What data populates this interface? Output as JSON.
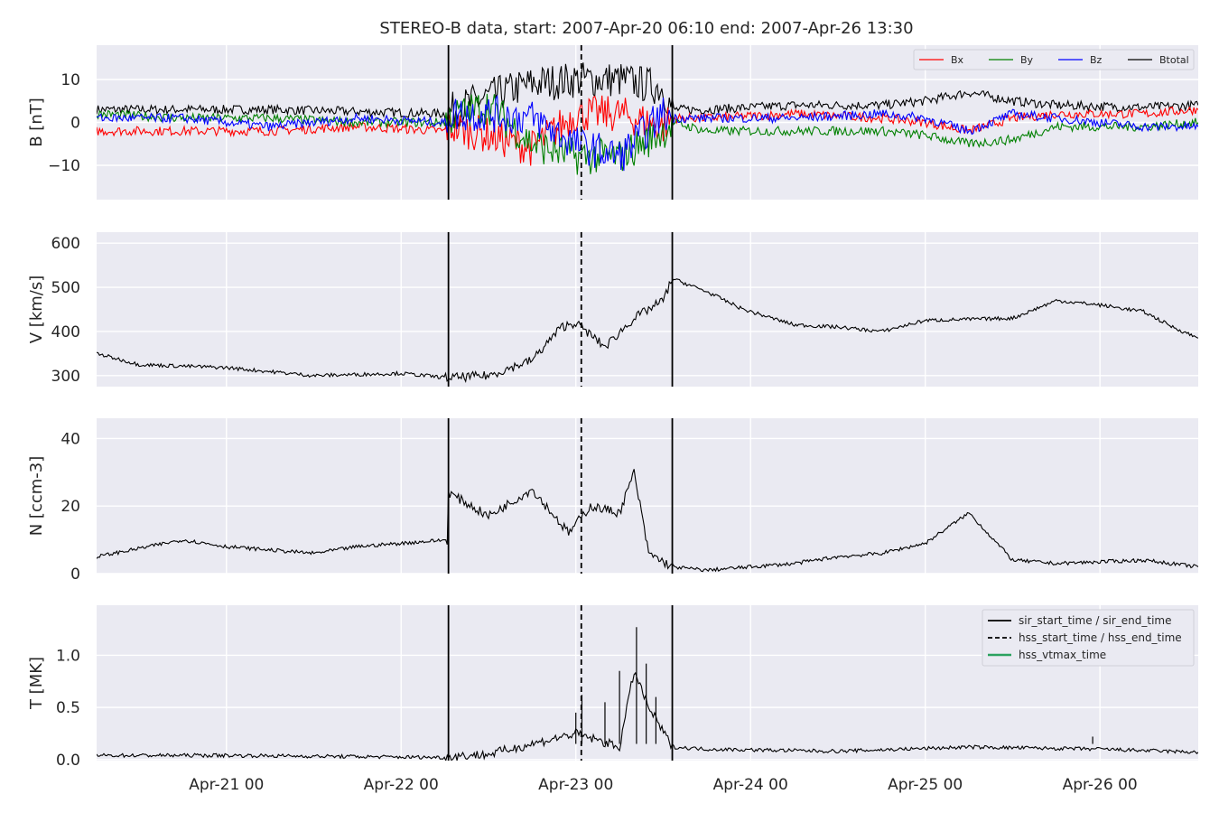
{
  "title": "STEREO-B data, start: 2007-Apr-20 06:10  end: 2007-Apr-26 13:30",
  "colors": {
    "panel_bg": "#eaeaf2",
    "grid": "#ffffff",
    "Bx": "#ff0000",
    "By": "#008000",
    "Bz": "#0000ff",
    "Btotal": "#000000",
    "event_lines": "#000000",
    "vtmax": "#2ca25f"
  },
  "chart_data": {
    "type": "line",
    "x_range": [
      "2007-04-20 06:10",
      "2007-04-26 13:30"
    ],
    "x_ticks": [
      "Apr-21 00",
      "Apr-22 00",
      "Apr-23 00",
      "Apr-24 00",
      "Apr-25 00",
      "Apr-26 00"
    ],
    "vertical_lines": [
      {
        "time": "2007-04-22 06:30",
        "style": "solid"
      },
      {
        "time": "2007-04-23 00:45",
        "style": "dashed"
      },
      {
        "time": "2007-04-23 13:15",
        "style": "solid"
      }
    ],
    "legend_bottom": [
      {
        "label": "sir_start_time / sir_end_time",
        "style": "solid",
        "color": "#000000"
      },
      {
        "label": "hss_start_time / hss_end_time",
        "style": "dashed",
        "color": "#000000"
      },
      {
        "label": "hss_vtmax_time",
        "style": "solid",
        "color": "#2ca25f"
      }
    ],
    "panels": [
      {
        "ylabel": "B [nT]",
        "ylim": [
          -18,
          18
        ],
        "yticks": [
          10,
          0,
          -10
        ],
        "ytick_labels": [
          "10",
          "0",
          "−10"
        ],
        "legend": [
          "Bx",
          "By",
          "Bz",
          "Btotal"
        ],
        "series": [
          {
            "name": "Btotal",
            "color": "#000000",
            "t": [
              "2007-04-20 06:10",
              "2007-04-20 18:00",
              "2007-04-21 06:00",
              "2007-04-21 18:00",
              "2007-04-22 06:00",
              "2007-04-22 06:30",
              "2007-04-22 12:00",
              "2007-04-22 18:00",
              "2007-04-23 00:00",
              "2007-04-23 06:00",
              "2007-04-23 12:00",
              "2007-04-23 13:15",
              "2007-04-23 18:00",
              "2007-04-24 06:00",
              "2007-04-24 18:00",
              "2007-04-25 00:00",
              "2007-04-25 06:00",
              "2007-04-25 12:00",
              "2007-04-25 18:00",
              "2007-04-26 06:00",
              "2007-04-26 13:30"
            ],
            "v": [
              3,
              3,
              3,
              2.5,
              2,
              2.5,
              6,
              9,
              10,
              10,
              8,
              3,
              3,
              4,
              4,
              5,
              7,
              5,
              4,
              3.5,
              4
            ]
          },
          {
            "name": "Bx",
            "color": "#ff0000",
            "t": [
              "2007-04-20 06:10",
              "2007-04-20 18:00",
              "2007-04-21 06:00",
              "2007-04-21 18:00",
              "2007-04-22 06:00",
              "2007-04-22 06:30",
              "2007-04-22 12:00",
              "2007-04-22 18:00",
              "2007-04-23 00:00",
              "2007-04-23 06:00",
              "2007-04-23 12:00",
              "2007-04-23 13:15",
              "2007-04-23 18:00",
              "2007-04-24 06:00",
              "2007-04-24 18:00",
              "2007-04-25 00:00",
              "2007-04-25 06:00",
              "2007-04-25 12:00",
              "2007-04-25 18:00",
              "2007-04-26 06:00",
              "2007-04-26 13:30"
            ],
            "v": [
              -2,
              -2,
              -2,
              -1,
              -2,
              -1,
              -3,
              -6,
              2,
              2,
              -1,
              1,
              1,
              2,
              1,
              0,
              -2,
              1,
              2,
              2,
              3
            ]
          },
          {
            "name": "By",
            "color": "#008000",
            "t": [
              "2007-04-20 06:10",
              "2007-04-20 18:00",
              "2007-04-21 06:00",
              "2007-04-21 18:00",
              "2007-04-22 06:00",
              "2007-04-22 06:30",
              "2007-04-22 12:00",
              "2007-04-22 18:00",
              "2007-04-23 00:00",
              "2007-04-23 06:00",
              "2007-04-23 12:00",
              "2007-04-23 13:15",
              "2007-04-23 18:00",
              "2007-04-24 06:00",
              "2007-04-24 18:00",
              "2007-04-25 00:00",
              "2007-04-25 06:00",
              "2007-04-25 12:00",
              "2007-04-25 18:00",
              "2007-04-26 06:00",
              "2007-04-26 13:30"
            ],
            "v": [
              2,
              1,
              1,
              0,
              0,
              1,
              4,
              -5,
              -8,
              -8,
              -2,
              0,
              -2,
              -2,
              -2,
              -3,
              -5,
              -4,
              -1,
              -1,
              0
            ]
          },
          {
            "name": "Bz",
            "color": "#0000ff",
            "t": [
              "2007-04-20 06:10",
              "2007-04-20 18:00",
              "2007-04-21 06:00",
              "2007-04-21 18:00",
              "2007-04-22 06:00",
              "2007-04-22 06:30",
              "2007-04-22 12:00",
              "2007-04-22 18:00",
              "2007-04-23 00:00",
              "2007-04-23 06:00",
              "2007-04-23 12:00",
              "2007-04-23 13:15",
              "2007-04-23 18:00",
              "2007-04-24 06:00",
              "2007-04-24 18:00",
              "2007-04-25 00:00",
              "2007-04-25 06:00",
              "2007-04-25 12:00",
              "2007-04-25 18:00",
              "2007-04-26 06:00",
              "2007-04-26 13:30"
            ],
            "v": [
              1,
              1,
              -1,
              1,
              0,
              2,
              2,
              1,
              -5,
              -8,
              2,
              1,
              1,
              1,
              2,
              1,
              -2,
              2,
              1,
              -1,
              -1
            ]
          }
        ]
      },
      {
        "ylabel": "V [km/s]",
        "ylim": [
          275,
          625
        ],
        "yticks": [
          600,
          500,
          400,
          300
        ],
        "ytick_labels": [
          "600",
          "500",
          "400",
          "300"
        ],
        "series": [
          {
            "name": "V",
            "color": "#000000",
            "t": [
              "2007-04-20 06:10",
              "2007-04-20 12:00",
              "2007-04-21 00:00",
              "2007-04-21 12:00",
              "2007-04-22 00:00",
              "2007-04-22 06:30",
              "2007-04-22 12:00",
              "2007-04-22 18:00",
              "2007-04-22 22:00",
              "2007-04-23 00:00",
              "2007-04-23 04:00",
              "2007-04-23 08:00",
              "2007-04-23 12:00",
              "2007-04-23 13:15",
              "2007-04-23 18:00",
              "2007-04-23 23:00",
              "2007-04-24 06:00",
              "2007-04-24 12:00",
              "2007-04-24 18:00",
              "2007-04-25 00:00",
              "2007-04-25 12:00",
              "2007-04-25 18:00",
              "2007-04-26 00:00",
              "2007-04-26 06:00",
              "2007-04-26 10:00",
              "2007-04-26 13:30"
            ],
            "v": [
              350,
              325,
              318,
              300,
              305,
              295,
              300,
              335,
              410,
              420,
              365,
              430,
              470,
              520,
              490,
              450,
              415,
              410,
              400,
              425,
              430,
              470,
              460,
              445,
              410,
              385
            ]
          }
        ]
      },
      {
        "ylabel": "N [ccm-3]",
        "ylim": [
          0,
          46
        ],
        "yticks": [
          40,
          20,
          0
        ],
        "ytick_labels": [
          "40",
          "20",
          "0"
        ],
        "series": [
          {
            "name": "N",
            "color": "#000000",
            "t": [
              "2007-04-20 06:10",
              "2007-04-20 18:00",
              "2007-04-21 00:00",
              "2007-04-21 12:00",
              "2007-04-21 18:00",
              "2007-04-22 06:20",
              "2007-04-22 06:30",
              "2007-04-22 12:00",
              "2007-04-22 18:00",
              "2007-04-22 23:00",
              "2007-04-23 02:00",
              "2007-04-23 06:00",
              "2007-04-23 08:00",
              "2007-04-23 10:00",
              "2007-04-23 13:15",
              "2007-04-23 18:00",
              "2007-04-24 06:00",
              "2007-04-24 12:00",
              "2007-04-24 18:00",
              "2007-04-25 00:00",
              "2007-04-25 06:00",
              "2007-04-25 12:00",
              "2007-04-25 18:00",
              "2007-04-26 06:00",
              "2007-04-26 13:30"
            ],
            "v": [
              5,
              10,
              8,
              6,
              8,
              10,
              24,
              17,
              25,
              12,
              20,
              18,
              30,
              6,
              2,
              1,
              3,
              5,
              6,
              9,
              18,
              4,
              3,
              4,
              2
            ]
          }
        ]
      },
      {
        "ylabel": "T [MK]",
        "ylim": [
          -0.01,
          1.48
        ],
        "yticks": [
          1.0,
          0.5,
          0.0
        ],
        "ytick_labels": [
          "1.0",
          "0.5",
          "0.0"
        ],
        "series": [
          {
            "name": "T",
            "color": "#000000",
            "t": [
              "2007-04-20 06:10",
              "2007-04-21 00:00",
              "2007-04-22 06:20",
              "2007-04-22 06:30",
              "2007-04-22 12:00",
              "2007-04-22 18:00",
              "2007-04-23 00:00",
              "2007-04-23 06:00",
              "2007-04-23 08:00",
              "2007-04-23 10:00",
              "2007-04-23 13:15",
              "2007-04-23 18:00",
              "2007-04-24 12:00",
              "2007-04-25 06:00",
              "2007-04-26 00:00",
              "2007-04-26 13:30"
            ],
            "v": [
              0.04,
              0.04,
              0.02,
              0.03,
              0.05,
              0.15,
              0.25,
              0.12,
              0.85,
              0.5,
              0.12,
              0.1,
              0.08,
              0.12,
              0.1,
              0.07
            ]
          },
          {
            "name": "T-peaks",
            "color": "#000000",
            "t": [
              "2007-04-23 00:00",
              "2007-04-23 00:50",
              "2007-04-23 04:00",
              "2007-04-23 06:00",
              "2007-04-23 08:20",
              "2007-04-23 09:40",
              "2007-04-23 11:00",
              "2007-04-25 23:00"
            ],
            "v": [
              0.45,
              0.62,
              0.55,
              0.85,
              1.27,
              0.92,
              0.6,
              0.22
            ]
          }
        ]
      }
    ]
  }
}
